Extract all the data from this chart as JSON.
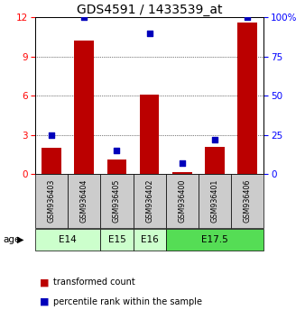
{
  "title": "GDS4591 / 1433539_at",
  "samples": [
    "GSM936403",
    "GSM936404",
    "GSM936405",
    "GSM936402",
    "GSM936400",
    "GSM936401",
    "GSM936406"
  ],
  "red_values": [
    2.0,
    10.2,
    1.1,
    6.1,
    0.12,
    2.1,
    11.6
  ],
  "blue_values": [
    25,
    100,
    15,
    90,
    7,
    22,
    100
  ],
  "ylim_left": [
    0,
    12
  ],
  "ylim_right": [
    0,
    100
  ],
  "yticks_left": [
    0,
    3,
    6,
    9,
    12
  ],
  "yticks_right": [
    0,
    25,
    50,
    75,
    100
  ],
  "age_groups": [
    {
      "label": "E14",
      "start": 0,
      "end": 2,
      "color": "#ccffcc"
    },
    {
      "label": "E15",
      "start": 2,
      "end": 3,
      "color": "#ccffcc"
    },
    {
      "label": "E16",
      "start": 3,
      "end": 4,
      "color": "#ccffcc"
    },
    {
      "label": "E17.5",
      "start": 4,
      "end": 7,
      "color": "#55dd55"
    }
  ],
  "bar_color": "#bb0000",
  "dot_color": "#0000bb",
  "sample_bg": "#cccccc",
  "age_label": "age",
  "legend_items": [
    {
      "color": "#bb0000",
      "label": "transformed count"
    },
    {
      "color": "#0000bb",
      "label": "percentile rank within the sample"
    }
  ],
  "title_fontsize": 10,
  "tick_fontsize": 7.5,
  "sample_fontsize": 5.8,
  "age_fontsize": 7.5,
  "legend_fontsize": 7
}
